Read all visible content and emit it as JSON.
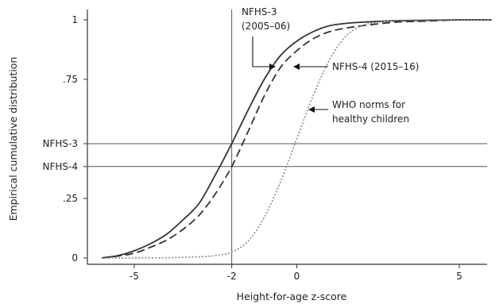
{
  "chart_data": {
    "type": "line",
    "xlabel": "Height-for-age z-score",
    "ylabel": "Empirical cumulative distribution",
    "xlim": [
      -6.5,
      6.5
    ],
    "ylim": [
      0,
      1
    ],
    "grid": false,
    "x_ticks": [
      {
        "value": -5,
        "label": "-5"
      },
      {
        "value": -2,
        "label": "-2"
      },
      {
        "value": 0,
        "label": "0"
      },
      {
        "value": 5,
        "label": "5"
      }
    ],
    "y_ticks": [
      {
        "value": 0,
        "label": "0"
      },
      {
        "value": 0.25,
        "label": ".25"
      },
      {
        "value": 0.75,
        "label": ".75"
      },
      {
        "value": 1,
        "label": "1"
      }
    ],
    "reference_lines": {
      "vertical": [
        {
          "x": -2
        }
      ],
      "horizontal": [
        {
          "y": 0.48,
          "label": "NFHS-3"
        },
        {
          "y": 0.384,
          "label": "NFHS-4"
        }
      ]
    },
    "series": [
      {
        "name": "NFHS-3 (2005–06)",
        "color": "#333333",
        "style": "solid",
        "x": [
          -6.0,
          -5.5,
          -5.0,
          -4.5,
          -4.0,
          -3.5,
          -3.0,
          -2.5,
          -2.0,
          -1.5,
          -1.0,
          -0.5,
          0.0,
          0.5,
          1.0,
          1.5,
          2.0,
          3.0,
          4.0,
          5.0,
          6.0
        ],
        "y": [
          0.0,
          0.01,
          0.03,
          0.06,
          0.1,
          0.16,
          0.23,
          0.35,
          0.48,
          0.62,
          0.75,
          0.85,
          0.91,
          0.95,
          0.975,
          0.985,
          0.99,
          0.996,
          0.998,
          1.0,
          1.0
        ]
      },
      {
        "name": "NFHS-4 (2015–16)",
        "color": "#333333",
        "style": "dashed",
        "x": [
          -6.0,
          -5.5,
          -5.0,
          -4.5,
          -4.0,
          -3.5,
          -3.0,
          -2.5,
          -2.0,
          -1.5,
          -1.0,
          -0.5,
          0.0,
          0.5,
          1.0,
          1.5,
          2.0,
          3.0,
          4.0,
          5.0,
          6.0
        ],
        "y": [
          0.0,
          0.008,
          0.02,
          0.045,
          0.075,
          0.12,
          0.18,
          0.27,
          0.384,
          0.53,
          0.68,
          0.8,
          0.87,
          0.92,
          0.95,
          0.965,
          0.975,
          0.99,
          0.995,
          1.0,
          1.0
        ]
      },
      {
        "name": "WHO norms for healthy children",
        "color": "#888888",
        "style": "dotted",
        "x": [
          -6.0,
          -5.0,
          -4.0,
          -3.0,
          -2.5,
          -2.0,
          -1.5,
          -1.0,
          -0.5,
          0.0,
          0.5,
          1.0,
          1.5,
          2.0,
          2.5,
          3.0,
          4.0,
          5.0,
          6.0
        ],
        "y": [
          0.0,
          0.0,
          0.001,
          0.005,
          0.01,
          0.025,
          0.07,
          0.17,
          0.32,
          0.5,
          0.68,
          0.83,
          0.93,
          0.975,
          0.99,
          0.997,
          1.0,
          1.0,
          1.0
        ]
      }
    ],
    "annotations": [
      {
        "id": "nfhs3",
        "lines": [
          "NFHS-3",
          "(2005–06)"
        ]
      },
      {
        "id": "nfhs4",
        "lines": [
          "NFHS-4 (2015–16)"
        ]
      },
      {
        "id": "who",
        "lines": [
          "WHO norms for",
          "healthy children"
        ]
      }
    ]
  }
}
